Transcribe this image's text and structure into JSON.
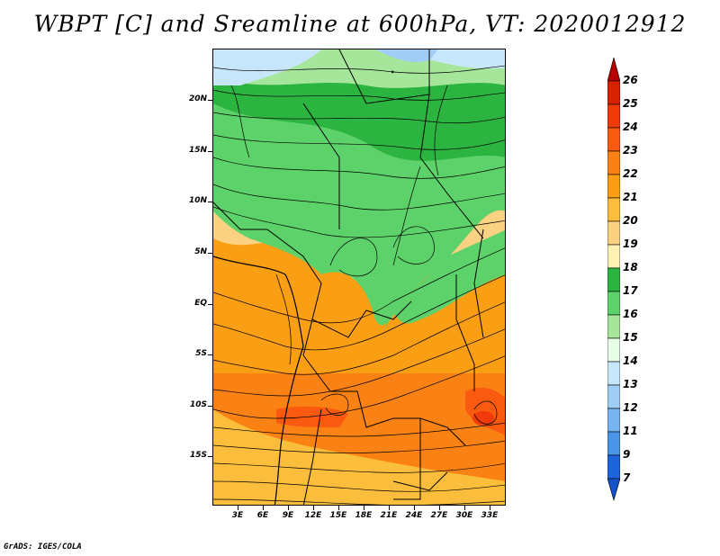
{
  "title": "WBPT [C] and Sreamline at 600hPa, VT: 2020012912",
  "credit": "GrADS: IGES/COLA",
  "map": {
    "lat_labels": [
      "20N",
      "15N",
      "10N",
      "5N",
      "EQ",
      "5S",
      "10S",
      "15S"
    ],
    "lon_labels": [
      "3E",
      "6E",
      "9E",
      "12E",
      "15E",
      "18E",
      "21E",
      "24E",
      "27E",
      "30E",
      "33E"
    ]
  },
  "colorbar": {
    "levels": [
      "26",
      "25",
      "24",
      "23",
      "22",
      "21",
      "20",
      "19",
      "18",
      "17",
      "16",
      "15",
      "14",
      "13",
      "12",
      "11",
      "9",
      "7"
    ],
    "colors": [
      "#b40000",
      "#d82100",
      "#f03a0a",
      "#fa5a0f",
      "#fa8214",
      "#fa9e14",
      "#fabe3c",
      "#fad282",
      "#fff0b4",
      "#2cb440",
      "#5ed26a",
      "#a5e69b",
      "#e6ffe6",
      "#c8e6fa",
      "#9fcdf5",
      "#78b4f0",
      "#4b94e6",
      "#1e64dc",
      "#1450c8"
    ]
  }
}
